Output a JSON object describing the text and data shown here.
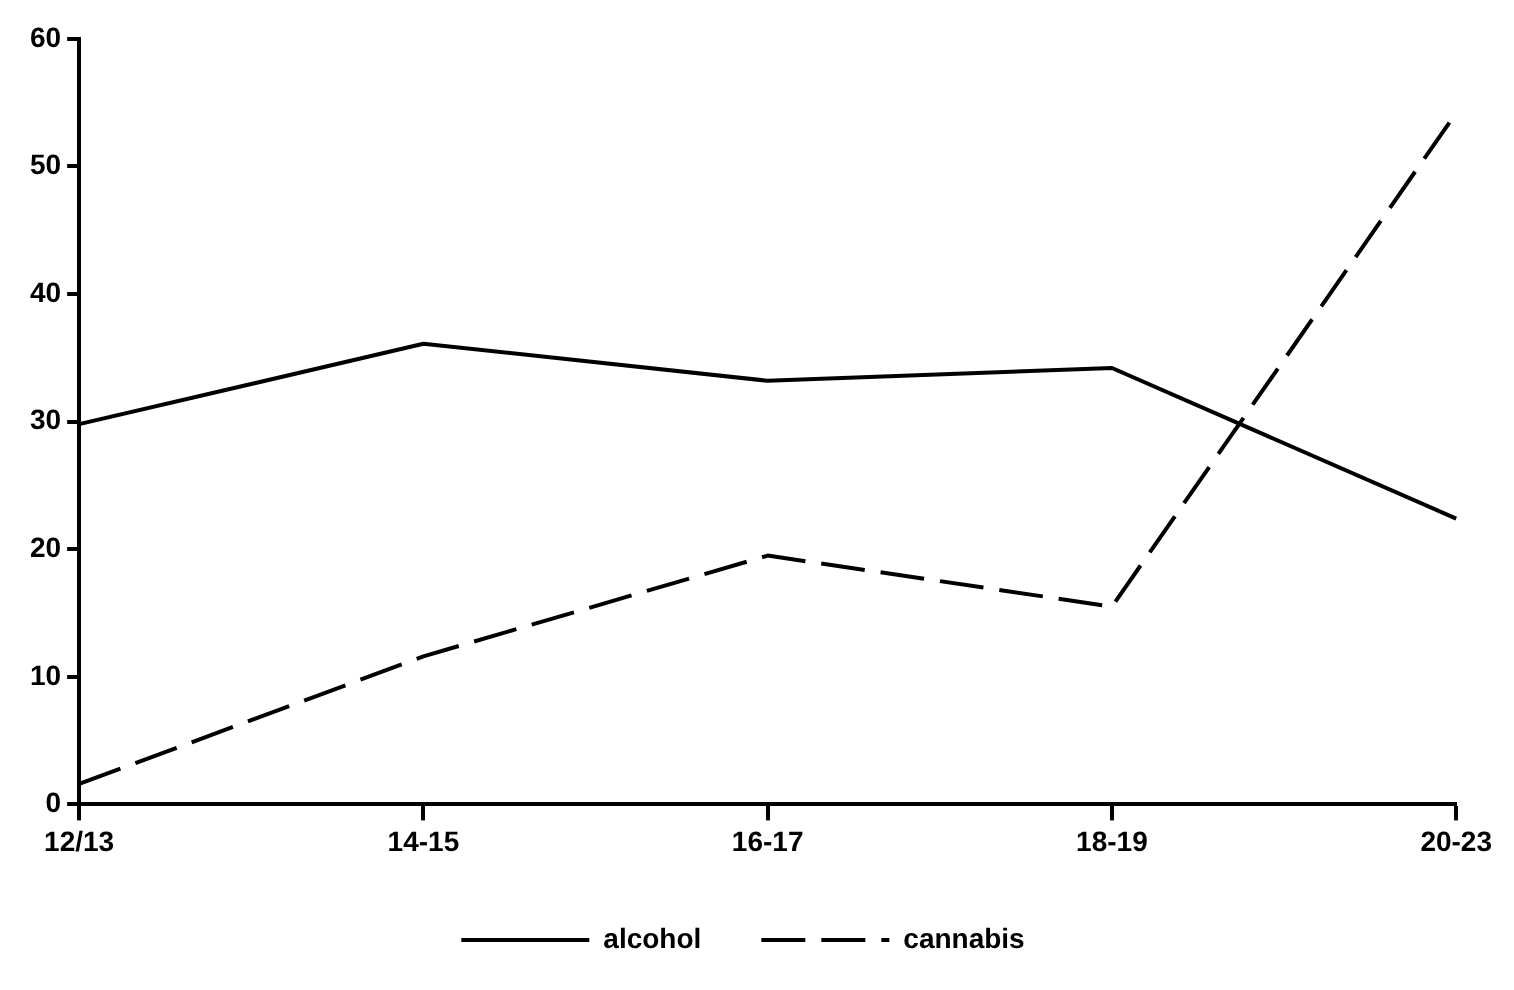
{
  "chart_data": {
    "type": "line",
    "categories": [
      "12/13",
      "14-15",
      "16-17",
      "18-19",
      "20-23"
    ],
    "series": [
      {
        "name": "alcohol",
        "color": "#000000",
        "line_style": "solid",
        "values": [
          29.8,
          36.1,
          33.2,
          34.2,
          22.4
        ]
      },
      {
        "name": "cannabis",
        "color": "#000000",
        "line_style": "dashed",
        "values": [
          1.6,
          11.6,
          19.5,
          15.5,
          54.2
        ]
      }
    ],
    "ylim": [
      0,
      60
    ],
    "yticks": [
      0,
      10,
      20,
      30,
      40,
      50,
      60
    ],
    "grid": false,
    "legend": "bottom",
    "marker": "none"
  }
}
